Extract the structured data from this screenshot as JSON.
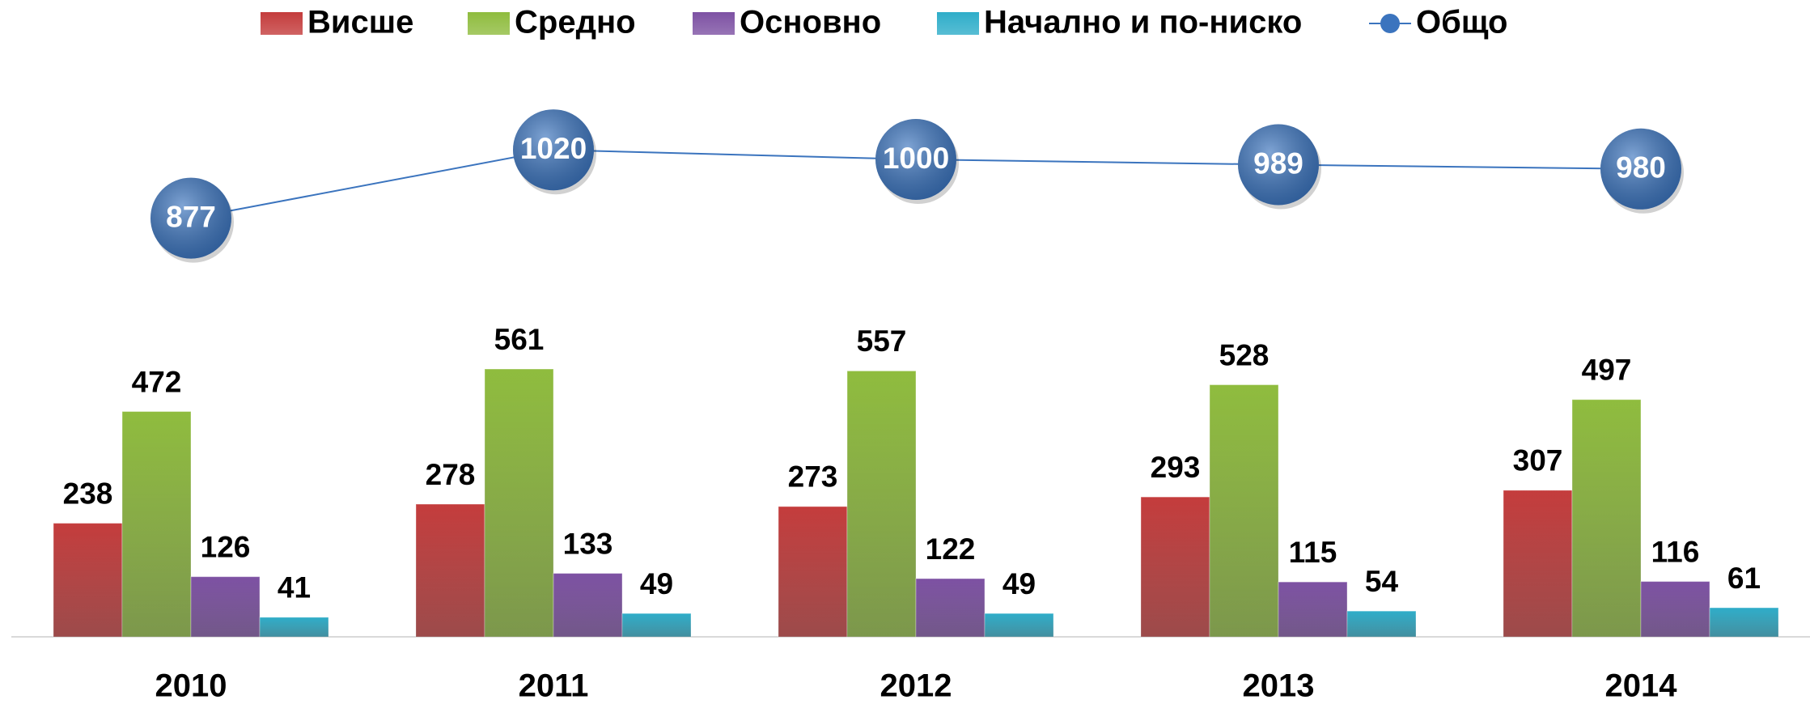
{
  "chart_data": {
    "type": "bar",
    "categories": [
      "2010",
      "2011",
      "2012",
      "2013",
      "2014"
    ],
    "series": [
      {
        "name": "Висше",
        "color": "#c43c3c",
        "values": [
          238,
          278,
          273,
          293,
          307
        ]
      },
      {
        "name": "Средно",
        "color": "#8fbc3e",
        "values": [
          472,
          561,
          557,
          528,
          497
        ]
      },
      {
        "name": "Основно",
        "color": "#7d51a3",
        "values": [
          126,
          133,
          122,
          115,
          116
        ]
      },
      {
        "name": "Начално и по-ниско",
        "color": "#2eadc9",
        "values": [
          41,
          49,
          49,
          54,
          61
        ]
      },
      {
        "name": "Общо",
        "type": "line",
        "color": "#3b74be",
        "values": [
          877,
          1020,
          1000,
          989,
          980
        ]
      }
    ],
    "ylim": [
      0,
      1200
    ],
    "legend": "top"
  }
}
